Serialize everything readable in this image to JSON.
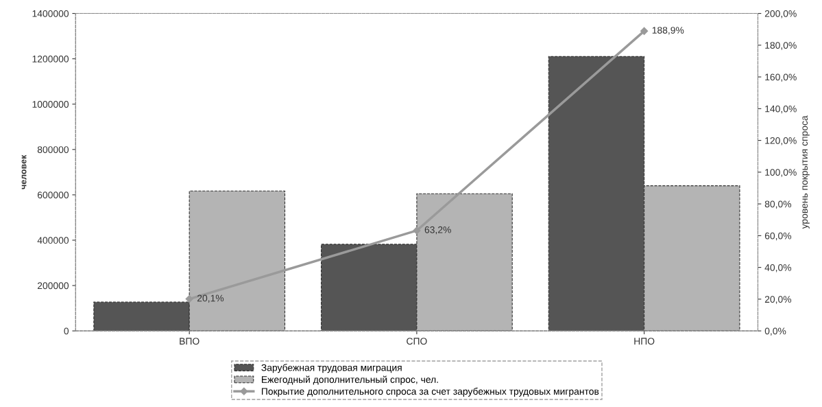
{
  "chart_data": {
    "type": "bar",
    "categories": [
      "ВПО",
      "СПО",
      "НПО"
    ],
    "ylabel": "человек",
    "y2label": "уровень покрытия спроса",
    "ylim": [
      0,
      1400000
    ],
    "yticks": [
      0,
      200000,
      400000,
      600000,
      800000,
      1000000,
      1200000,
      1400000
    ],
    "y2lim": [
      0,
      200
    ],
    "y2ticks": [
      {
        "value": 0,
        "label": "0,0%"
      },
      {
        "value": 20,
        "label": "20,0%"
      },
      {
        "value": 40,
        "label": "40,0%"
      },
      {
        "value": 60,
        "label": "60,0%"
      },
      {
        "value": 80,
        "label": "80,0%"
      },
      {
        "value": 100,
        "label": "100,0%"
      },
      {
        "value": 120,
        "label": "120,0%"
      },
      {
        "value": 140,
        "label": "140,0%"
      },
      {
        "value": 160,
        "label": "160,0%"
      },
      {
        "value": 180,
        "label": "180,0%"
      },
      {
        "value": 200,
        "label": "200,0%"
      }
    ],
    "series": [
      {
        "name": "Зарубежная трудовая миграция",
        "color": "#555555",
        "values": [
          127000,
          382000,
          1210000
        ]
      },
      {
        "name": "Ежегодный дополнительный спрос, чел.",
        "color": "#b4b4b4",
        "values": [
          617000,
          605000,
          640000
        ]
      },
      {
        "name": "Покрытие дополнительного спроса за счет зарубежных трудовых мигрантов",
        "type": "line",
        "axis": "y2",
        "color": "#9a9a9a",
        "marker": "diamond",
        "values": [
          20.1,
          63.2,
          188.9
        ],
        "value_labels": [
          "20,1%",
          "63,2%",
          "188,9%"
        ]
      }
    ],
    "legend": "bottom",
    "grid": false
  }
}
